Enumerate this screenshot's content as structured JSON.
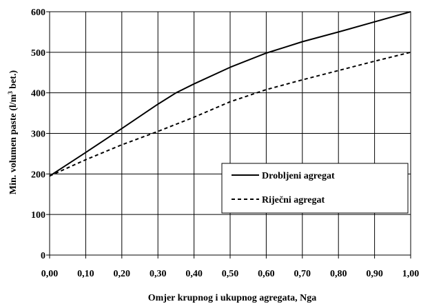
{
  "chart_data": {
    "type": "line",
    "title": "",
    "xlabel": "Omjer krupnog i ukupnog agregata, Nga",
    "ylabel": {
      "before": "Min. volumen paste (l/m",
      "sup": "3",
      "after": " bet.)"
    },
    "xlim": [
      0,
      1
    ],
    "ylim": [
      0,
      600
    ],
    "x_ticks": [
      0,
      0.1,
      0.2,
      0.3,
      0.4,
      0.5,
      0.6,
      0.7,
      0.8,
      0.9,
      1.0
    ],
    "x_tick_labels": [
      "0,00",
      "0,10",
      "0,20",
      "0,30",
      "0,40",
      "0,50",
      "0,60",
      "0,70",
      "0,80",
      "0,90",
      "1,00"
    ],
    "y_ticks": [
      0,
      100,
      200,
      300,
      400,
      500,
      600
    ],
    "y_tick_labels": [
      "0",
      "100",
      "200",
      "300",
      "400",
      "500",
      "600"
    ],
    "grid": true,
    "legend_position": "right-middle",
    "series": [
      {
        "name": "Drobljeni agregat",
        "style": "solid",
        "color": "#000000",
        "points": [
          [
            0,
            195
          ],
          [
            0.1,
            253
          ],
          [
            0.2,
            312
          ],
          [
            0.3,
            372
          ],
          [
            0.35,
            400
          ],
          [
            0.4,
            422
          ],
          [
            0.5,
            463
          ],
          [
            0.6,
            498
          ],
          [
            0.65,
            512
          ],
          [
            0.7,
            526
          ],
          [
            0.8,
            550
          ],
          [
            0.9,
            575
          ],
          [
            1.0,
            600
          ]
        ]
      },
      {
        "name": "Riječni agregat",
        "style": "dashed",
        "color": "#000000",
        "points": [
          [
            0,
            195
          ],
          [
            0.1,
            235
          ],
          [
            0.2,
            272
          ],
          [
            0.3,
            305
          ],
          [
            0.4,
            340
          ],
          [
            0.5,
            378
          ],
          [
            0.6,
            408
          ],
          [
            0.7,
            432
          ],
          [
            0.8,
            455
          ],
          [
            0.9,
            478
          ],
          [
            1.0,
            500
          ]
        ]
      }
    ]
  }
}
